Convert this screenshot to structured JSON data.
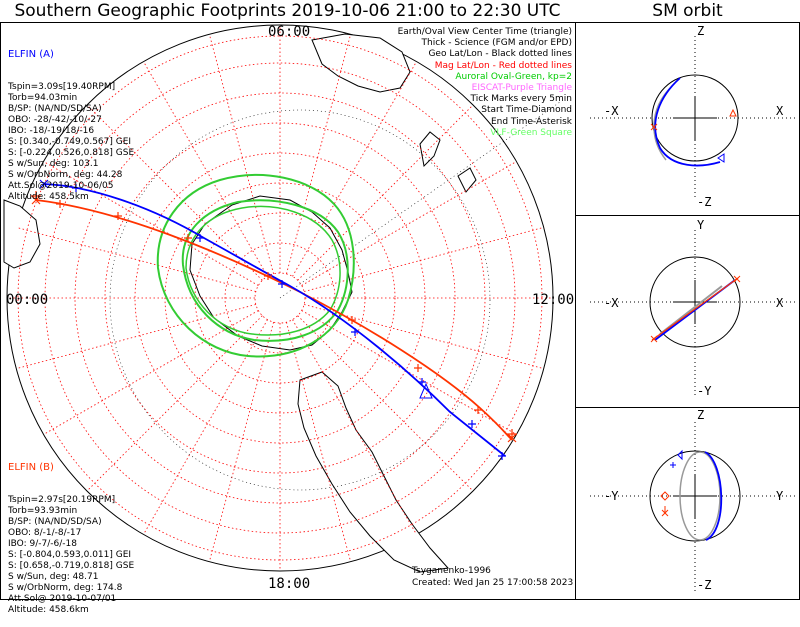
{
  "title": "Southern Geographic Footprints 2019-10-06 21:00 to 22:30 UTC",
  "sm_title": "SM orbit",
  "mlt_labels": {
    "top": "06:00",
    "left": "00:00",
    "right": "12:00",
    "bottom": "18:00"
  },
  "elfin_a": {
    "name": "ELFIN (A)",
    "color": "#0000ff",
    "lines": [
      "Tspin=3.09s[19.40RPM]",
      "Torb=94.03min",
      "B/SP: (NA/ND/SD/SA)",
      "OBO: -28/-42/-10/-27",
      "IBO: -18/-19/18/-16",
      "S: [0.340,-0.749,0.567] GEI",
      "S: [-0.224,0.526,0.818] GSE",
      "S w/Sun, deg: 103.1",
      "S w/OrbNorm, deg: 44.28",
      "Att.Sol@2019-10-06/05",
      "Altitude: 458.5km"
    ]
  },
  "elfin_b": {
    "name": "ELFIN (B)",
    "color": "#ff3300",
    "lines": [
      "Tspin=2.97s[20.19RPM]",
      "Torb=93.93min",
      "B/SP: (NA/ND/SD/SA)",
      "OBO: 8/-1/-8/-17",
      "IBO: 9/-7/-6/-18",
      "S: [-0.804,0.593,0.011] GEI",
      "S: [0.658,-0.719,0.818] GSE",
      "S w/Sun, deg: 48.71",
      "S w/OrbNorm, deg: 174.8",
      "Att.Sol@ 2019-10-07/01",
      "Altitude: 458.6km"
    ]
  },
  "legend": [
    {
      "text": "Earth/Oval View Center Time (triangle)",
      "color": "#000000"
    },
    {
      "text": "Thick - Science (FGM and/or EPD)",
      "color": "#000000"
    },
    {
      "text": "Geo Lat/Lon - Black dotted lines",
      "color": "#000000"
    },
    {
      "text": "Mag Lat/Lon - Red dotted lines",
      "color": "#ff0000"
    },
    {
      "text": "Auroral Oval-Green, kp=2",
      "color": "#00cc00"
    },
    {
      "text": "EISCAT-Purple Triangle",
      "color": "#ff66ff"
    },
    {
      "text": "Tick Marks every 5min",
      "color": "#000000"
    },
    {
      "text": "Start Time-Diamond",
      "color": "#000000"
    },
    {
      "text": "End Time-Asterisk",
      "color": "#000000"
    },
    {
      "text": "VLF-Green Square",
      "color": "#66ff66"
    }
  ],
  "footer": {
    "model": "Tsyganenko-1996",
    "created": "Created: Wed Jan 25 17:00:58 2023"
  },
  "sm_panels": [
    {
      "top": "Z",
      "bottom": "-Z",
      "left": "-X",
      "right": "X"
    },
    {
      "top": "Y",
      "bottom": "-Y",
      "left": "-X",
      "right": "X"
    },
    {
      "top": "Z",
      "bottom": "-Z",
      "left": "-Y",
      "right": "Y"
    }
  ],
  "colors": {
    "mag_grid": "#ff0000",
    "geo_grid": "#000000",
    "oval": "#33cc33",
    "elfin_a": "#0000ff",
    "elfin_b": "#ff3300",
    "sm_ref": "#999999"
  }
}
